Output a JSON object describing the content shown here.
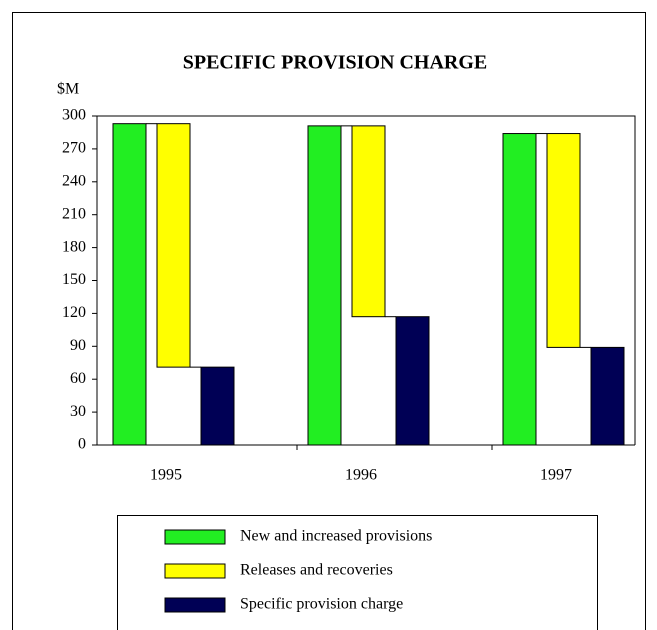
{
  "chart_data": {
    "type": "waterfall-bar",
    "title": "SPECIFIC PROVISION CHARGE",
    "y_label": "$M",
    "categories": [
      "1995",
      "1996",
      "1997"
    ],
    "series": [
      {
        "name": "New and increased provisions",
        "color": "#22ee22",
        "values": [
          293,
          291,
          284
        ]
      },
      {
        "name": "Releases and recoveries",
        "color": "#ffff00",
        "values": [
          222,
          174,
          195
        ]
      },
      {
        "name": "Specific provision charge",
        "color": "#000055",
        "values": [
          71,
          117,
          89
        ]
      }
    ],
    "ylim": [
      0,
      300
    ],
    "yticks": [
      0,
      30,
      60,
      90,
      120,
      150,
      180,
      210,
      240,
      270,
      300
    ]
  }
}
